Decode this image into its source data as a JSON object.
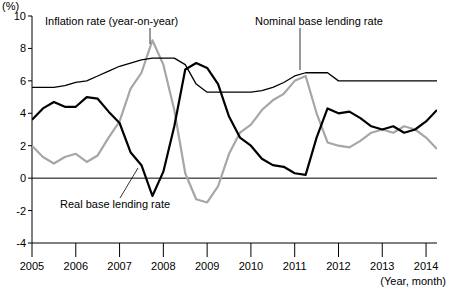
{
  "chart_data": {
    "type": "line",
    "y_label": "(%)",
    "x_label": "(Year, month)",
    "x": [
      2005,
      2005.25,
      2005.5,
      2005.75,
      2006,
      2006.25,
      2006.5,
      2006.75,
      2007,
      2007.25,
      2007.5,
      2007.75,
      2008,
      2008.25,
      2008.5,
      2008.75,
      2009,
      2009.25,
      2009.5,
      2009.75,
      2010,
      2010.25,
      2010.5,
      2010.75,
      2011,
      2011.25,
      2011.5,
      2011.75,
      2012,
      2012.25,
      2012.5,
      2012.75,
      2013,
      2013.25,
      2013.5,
      2013.75,
      2014,
      2014.25
    ],
    "series": [
      {
        "name": "Inflation rate (year-on-year)",
        "color": "#a6a6a6",
        "values": [
          2.0,
          1.3,
          0.9,
          1.3,
          1.5,
          1.0,
          1.4,
          2.5,
          3.5,
          5.5,
          6.5,
          8.5,
          7.0,
          4.2,
          0.3,
          -1.3,
          -1.5,
          -0.5,
          1.5,
          2.8,
          3.3,
          4.2,
          4.8,
          5.2,
          6.0,
          6.3,
          4.0,
          2.2,
          2.0,
          1.9,
          2.3,
          2.8,
          3.0,
          2.8,
          3.2,
          3.0,
          2.5,
          1.8
        ]
      },
      {
        "name": "Nominal base lending rate",
        "color": "#000000",
        "values": [
          5.6,
          5.6,
          5.6,
          5.7,
          5.9,
          6.0,
          6.3,
          6.6,
          6.9,
          7.1,
          7.3,
          7.4,
          7.4,
          7.4,
          7.0,
          5.8,
          5.3,
          5.3,
          5.3,
          5.3,
          5.3,
          5.4,
          5.6,
          5.9,
          6.3,
          6.5,
          6.5,
          6.5,
          6.0,
          6.0,
          6.0,
          6.0,
          6.0,
          6.0,
          6.0,
          6.0,
          6.0,
          6.0
        ]
      },
      {
        "name": "Real base lending rate",
        "color": "#000000",
        "values": [
          3.6,
          4.3,
          4.7,
          4.4,
          4.4,
          5.0,
          4.9,
          4.1,
          3.4,
          1.6,
          0.8,
          -1.1,
          0.4,
          3.2,
          6.7,
          7.1,
          6.8,
          5.8,
          3.8,
          2.5,
          2.0,
          1.2,
          0.8,
          0.7,
          0.3,
          0.2,
          2.5,
          4.3,
          4.0,
          4.1,
          3.7,
          3.2,
          3.0,
          3.2,
          2.8,
          3.0,
          3.5,
          4.2
        ]
      }
    ],
    "xlim": [
      2005,
      2014.25
    ],
    "xticks": [
      2005,
      2006,
      2007,
      2008,
      2009,
      2010,
      2011,
      2012,
      2013,
      2014
    ],
    "ylim": [
      -4,
      10
    ],
    "yticks": [
      -4,
      -2,
      0,
      2,
      4,
      6,
      8,
      10
    ],
    "grid": false
  }
}
